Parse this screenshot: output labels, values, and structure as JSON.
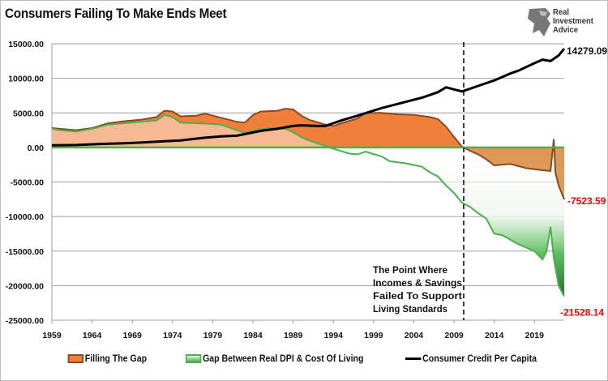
{
  "chart_data": {
    "type": "area",
    "title": "Consumers Failing To Make Ends Meet",
    "xlabel": "",
    "ylabel": "",
    "xlim": [
      1959,
      2022.7
    ],
    "ylim": [
      -25000,
      15000
    ],
    "x_ticks": [
      "1959",
      "1964",
      "1969",
      "1974",
      "1979",
      "1984",
      "1989",
      "1994",
      "1999",
      "2004",
      "2009",
      "2014",
      "2019"
    ],
    "y_ticks": [
      "15000.00",
      "10000.00",
      "5000.00",
      "0.00",
      "-5000.00",
      "-10000.00",
      "-15000.00",
      "-20000.00",
      "-25000.00"
    ],
    "grid": true,
    "legend_position": "bottom",
    "series": [
      {
        "name": "Filling The Gap",
        "kind": "area",
        "color": "#f07f3c",
        "line_color": "#8b4a1f",
        "x": [
          1959,
          1960,
          1962,
          1964,
          1966,
          1968,
          1970,
          1972,
          1973,
          1974,
          1975,
          1977,
          1978,
          1980,
          1982,
          1983,
          1984,
          1985,
          1987,
          1988,
          1989,
          1990,
          1991,
          1993,
          1994,
          1995,
          1997,
          1998,
          2000,
          2002,
          2004,
          2006,
          2007,
          2008,
          2009,
          2010,
          2011,
          2012,
          2013,
          2014,
          2016,
          2018,
          2020,
          2021,
          2021.4,
          2021.6,
          2022,
          2022.7
        ],
        "y": [
          2800,
          2700,
          2500,
          2800,
          3500,
          3800,
          4000,
          4400,
          5300,
          5200,
          4500,
          4600,
          4900,
          4300,
          3700,
          3600,
          4700,
          5200,
          5300,
          5600,
          5500,
          4600,
          4000,
          3300,
          3100,
          3500,
          4200,
          5000,
          5000,
          4800,
          4700,
          4400,
          4100,
          3000,
          1500,
          100,
          -500,
          -1000,
          -1700,
          -2600,
          -2400,
          -3000,
          -3300,
          -3400,
          1200,
          -3600,
          -5500,
          -7523.59
        ]
      },
      {
        "name": "Gap Between Real DPI & Cost Of Living",
        "kind": "area",
        "color": "#4caf50",
        "line_color": "#4caf50",
        "x": [
          1959,
          1960,
          1962,
          1964,
          1966,
          1968,
          1970,
          1972,
          1973,
          1974,
          1975,
          1977,
          1979,
          1980,
          1982,
          1983,
          1985,
          1986,
          1988,
          1989,
          1990,
          1991,
          1992,
          1993,
          1994,
          1996,
          1997,
          1998,
          2000,
          2001,
          2003,
          2005,
          2006,
          2007,
          2008,
          2009,
          2010,
          2011,
          2012,
          2013,
          2014,
          2015,
          2017,
          2019,
          2020,
          2020.5,
          2021,
          2021.4,
          2022,
          2022.7
        ],
        "y": [
          2700,
          2500,
          2300,
          2700,
          3300,
          3500,
          3700,
          3900,
          4700,
          4400,
          3600,
          3500,
          3400,
          3300,
          2500,
          2100,
          2600,
          2800,
          2700,
          2200,
          1500,
          1000,
          600,
          200,
          -200,
          -900,
          -1000,
          -600,
          -1300,
          -2000,
          -2300,
          -2800,
          -3600,
          -4200,
          -5500,
          -6600,
          -8000,
          -8600,
          -9500,
          -10300,
          -12500,
          -12700,
          -14000,
          -15000,
          -16200,
          -15000,
          -11500,
          -16000,
          -20000,
          -21528.14
        ]
      },
      {
        "name": "Consumer Credit Per Capita",
        "kind": "line",
        "color": "#000000",
        "x": [
          1959,
          1962,
          1965,
          1968,
          1970,
          1973,
          1975,
          1978,
          1980,
          1982,
          1985,
          1987,
          1989,
          1990,
          1992,
          1993,
          1995,
          1997,
          2000,
          2002,
          2005,
          2007,
          2008,
          2009,
          2010,
          2012,
          2014,
          2016,
          2017,
          2019,
          2020,
          2021,
          2022,
          2022.7
        ],
        "y": [
          300,
          350,
          500,
          600,
          700,
          900,
          1000,
          1400,
          1600,
          1700,
          2400,
          2700,
          3100,
          3200,
          3100,
          3100,
          3900,
          4600,
          5700,
          6300,
          7200,
          8000,
          8700,
          8400,
          8100,
          8900,
          9700,
          10700,
          11100,
          12200,
          12700,
          12500,
          13300,
          14279.09
        ]
      }
    ],
    "annotations": {
      "credit_end_label": "14279.09",
      "filling_end_label": "-7523.59",
      "gap_end_label": "-21528.14",
      "vline_year": 2010.2,
      "vline_text": [
        "The Point Where",
        "Incomes & Savings",
        "Failed To Support",
        "Living Standards"
      ],
      "negative_label_color": "#ff0000"
    }
  },
  "logo": {
    "text": [
      "Real",
      "Investment",
      "Advice"
    ]
  }
}
